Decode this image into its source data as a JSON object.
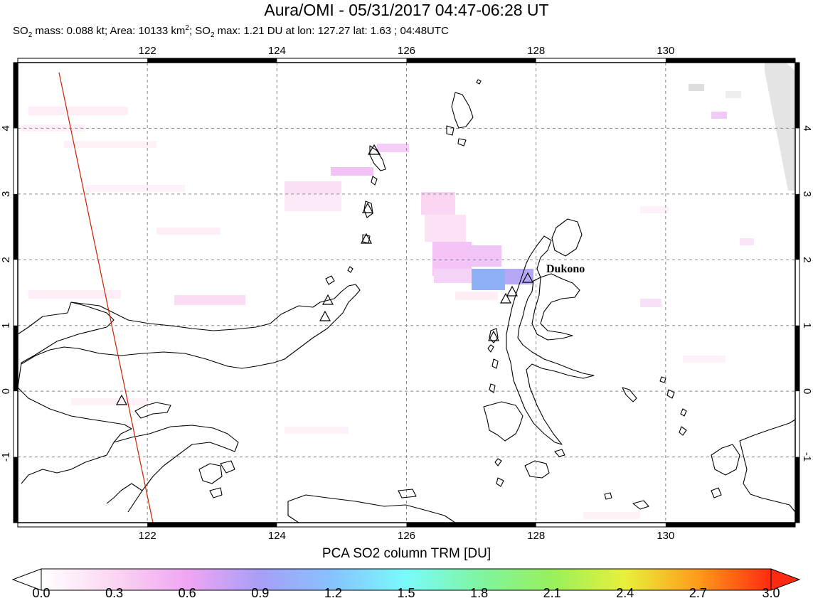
{
  "title": "Aura/OMI - 05/31/2017 04:47-06:28 UT",
  "subtitle": {
    "p1": "SO",
    "s1": "2",
    "p2": " mass: 0.088 kt; Area: 10133 km",
    "s2": "2",
    "p3": "; SO",
    "s3": "2",
    "p4": " max: 1.21 DU at lon: 127.27 lat: 1.63 ; 04:48UTC"
  },
  "map": {
    "lon_range": [
      120.0,
      132.0
    ],
    "lat_range": [
      -2.0,
      5.0
    ],
    "lon_ticks": [
      "122",
      "124",
      "126",
      "128",
      "130"
    ],
    "lat_ticks": [
      "-1",
      "0",
      "1",
      "2",
      "3",
      "4"
    ],
    "grid": "dashed",
    "volcano_label": "Dukono",
    "colors": {
      "coast": "#000000",
      "swath_edge": "#cc2200",
      "grid": "#888888"
    }
  },
  "colorbar": {
    "title": "PCA SO2 column TRM [DU]",
    "ticks": [
      "0.0",
      "0.3",
      "0.6",
      "0.9",
      "1.2",
      "1.5",
      "1.8",
      "2.1",
      "2.4",
      "2.7",
      "3.0"
    ],
    "colors": [
      "#ffffff",
      "#fbd6f2",
      "#f0a5f3",
      "#a79ef7",
      "#86c3ff",
      "#79fbfb",
      "#7ff5a2",
      "#98f05c",
      "#e8f03a",
      "#ff9b1a",
      "#ff2a10"
    ]
  }
}
